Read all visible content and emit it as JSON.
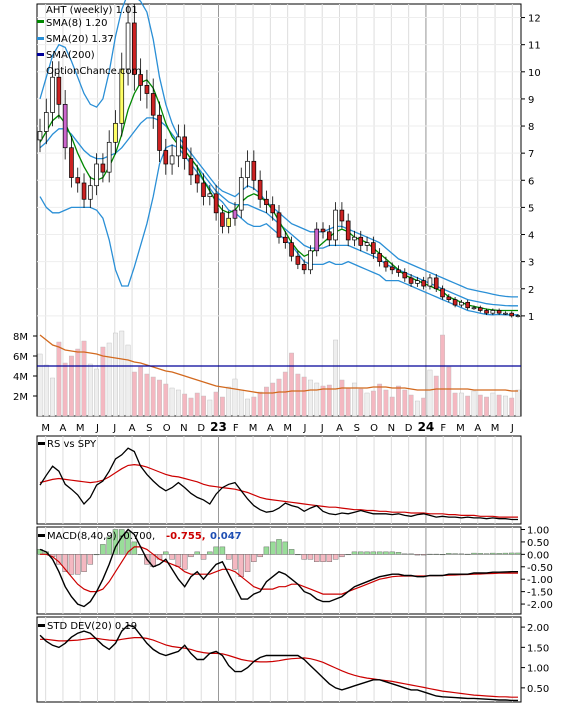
{
  "chart_data": {
    "type": "stock-chart",
    "colors": {
      "up_candle": "#ffffff",
      "down_candle": "#cc2222",
      "ribbon_yellow": "#ffff66",
      "ribbon_violet": "#cc66cc",
      "sma8": "#008800",
      "sma20": "#2a8fd6",
      "sma200": "#000099",
      "volume_up": "#eeeeee",
      "volume_down": "#f4b8c1",
      "volume_avg": "#d2691e",
      "rs_line": "#000000",
      "rs_avg": "#cc0000",
      "macd_line": "#000000",
      "signal_line": "#cc0000",
      "hist_up": "#99dd99",
      "hist_down": "#f4b8c1",
      "std_line": "#000000",
      "std_avg": "#cc0000"
    },
    "months": [
      "M",
      "A",
      "M",
      "J",
      "J",
      "A",
      "S",
      "O",
      "N",
      "D",
      "23",
      "F",
      "M",
      "A",
      "M",
      "J",
      "J",
      "A",
      "S",
      "O",
      "N",
      "D",
      "24",
      "F",
      "M",
      "A",
      "M",
      "J"
    ],
    "year_labels": [
      "23",
      "24"
    ],
    "price_panel": {
      "legend": {
        "title": "AHT (weekly) 1.01",
        "sma8": "SMA(8) 1.20",
        "sma20": "SMA(20) 1.37",
        "sma200": "SMA(200)",
        "watermark": "OptionChance.com"
      },
      "ymin": 0,
      "ymax": 12.5,
      "yticks": [
        1,
        2,
        3,
        4,
        5,
        6,
        7,
        8,
        9,
        10,
        11,
        12
      ],
      "close": [
        7.8,
        8.5,
        9.8,
        8.8,
        7.2,
        6.1,
        5.9,
        5.3,
        5.8,
        6.6,
        6.3,
        7.4,
        8.1,
        10.1,
        11.8,
        9.9,
        9.5,
        9.2,
        8.4,
        7.1,
        6.6,
        6.9,
        7.6,
        6.8,
        6.2,
        5.9,
        5.4,
        5.5,
        4.8,
        4.3,
        4.6,
        4.9,
        6.1,
        6.7,
        6.0,
        5.3,
        5.1,
        4.8,
        3.9,
        3.7,
        3.2,
        2.9,
        2.7,
        3.4,
        4.2,
        4.1,
        3.8,
        4.9,
        4.5,
        3.8,
        3.9,
        3.6,
        3.7,
        3.3,
        3.0,
        2.8,
        2.7,
        2.6,
        2.4,
        2.2,
        2.3,
        2.1,
        2.4,
        2.0,
        1.7,
        1.6,
        1.4,
        1.5,
        1.3,
        1.3,
        1.2,
        1.1,
        1.2,
        1.1,
        1.1,
        1.0,
        1.01
      ],
      "sma8": [
        7.4,
        7.8,
        8.2,
        8.4,
        8.1,
        7.6,
        7.0,
        6.5,
        6.1,
        6.0,
        6.1,
        6.5,
        7.0,
        7.7,
        8.6,
        9.2,
        9.6,
        9.7,
        9.4,
        8.8,
        8.1,
        7.6,
        7.3,
        7.1,
        6.8,
        6.5,
        6.0,
        5.6,
        5.2,
        4.9,
        4.8,
        4.9,
        5.2,
        5.4,
        5.5,
        5.4,
        5.2,
        4.9,
        4.5,
        4.1,
        3.7,
        3.4,
        3.2,
        3.3,
        3.5,
        3.7,
        3.9,
        4.1,
        4.2,
        4.1,
        3.9,
        3.8,
        3.7,
        3.5,
        3.3,
        3.1,
        2.9,
        2.7,
        2.5,
        2.4,
        2.3,
        2.2,
        2.1,
        2.0,
        1.9,
        1.7,
        1.6,
        1.5,
        1.4,
        1.35,
        1.3,
        1.25,
        1.22,
        1.2,
        1.2,
        1.2,
        1.2
      ],
      "sma20": [
        7.2,
        7.4,
        7.7,
        7.9,
        7.9,
        7.7,
        7.4,
        7.1,
        6.9,
        6.8,
        6.8,
        6.9,
        7.0,
        7.2,
        7.5,
        7.8,
        8.1,
        8.3,
        8.3,
        8.2,
        8.0,
        7.7,
        7.4,
        7.1,
        6.8,
        6.5,
        6.2,
        5.9,
        5.6,
        5.4,
        5.2,
        5.1,
        5.1,
        5.1,
        5.0,
        4.9,
        4.8,
        4.6,
        4.4,
        4.2,
        4.0,
        3.8,
        3.6,
        3.5,
        3.5,
        3.5,
        3.6,
        3.6,
        3.6,
        3.6,
        3.5,
        3.4,
        3.3,
        3.2,
        3.1,
        2.9,
        2.8,
        2.7,
        2.6,
        2.5,
        2.4,
        2.3,
        2.2,
        2.1,
        2.0,
        1.9,
        1.8,
        1.7,
        1.6,
        1.55,
        1.5,
        1.45,
        1.42,
        1.4,
        1.38,
        1.37,
        1.37
      ],
      "bb_upper": [
        9.0,
        9.8,
        10.6,
        11.0,
        10.9,
        10.4,
        9.8,
        9.2,
        8.8,
        8.7,
        9.0,
        10.0,
        11.3,
        12.3,
        12.9,
        12.8,
        12.6,
        12.2,
        11.2,
        9.8,
        8.8,
        8.1,
        7.6,
        7.3,
        7.0,
        6.7,
        6.4,
        6.1,
        5.8,
        5.6,
        5.5,
        5.4,
        5.6,
        5.8,
        5.7,
        5.5,
        5.2,
        5.0,
        4.8,
        4.6,
        4.4,
        4.3,
        4.2,
        4.1,
        4.1,
        4.1,
        4.2,
        4.3,
        4.3,
        4.2,
        4.1,
        4.0,
        3.9,
        3.8,
        3.7,
        3.5,
        3.3,
        3.1,
        3.0,
        2.9,
        2.8,
        2.7,
        2.6,
        2.5,
        2.4,
        2.3,
        2.2,
        2.1,
        2.0,
        1.95,
        1.9,
        1.85,
        1.8,
        1.75,
        1.72,
        1.7,
        1.7
      ],
      "bb_lower": [
        5.4,
        5.0,
        4.8,
        4.8,
        4.9,
        5.0,
        5.0,
        5.0,
        5.0,
        4.9,
        4.6,
        3.8,
        2.7,
        2.1,
        2.1,
        2.8,
        3.6,
        4.4,
        5.4,
        6.6,
        7.2,
        7.3,
        7.2,
        6.9,
        6.6,
        6.3,
        6.0,
        5.7,
        5.4,
        5.2,
        4.9,
        4.8,
        4.6,
        4.4,
        4.3,
        4.3,
        4.4,
        4.2,
        4.0,
        3.8,
        3.6,
        3.3,
        3.0,
        2.9,
        2.9,
        2.9,
        3.0,
        2.9,
        2.9,
        3.0,
        2.9,
        2.8,
        2.7,
        2.6,
        2.5,
        2.3,
        2.3,
        2.3,
        2.2,
        2.1,
        2.0,
        1.9,
        1.8,
        1.7,
        1.6,
        1.5,
        1.4,
        1.3,
        1.2,
        1.15,
        1.1,
        1.05,
        1.04,
        1.05,
        1.04,
        1.04,
        1.04
      ]
    },
    "volume_panel": {
      "ymin": 0,
      "ymax": 9,
      "ytick_labels": [
        "2M",
        "4M",
        "6M",
        "8M"
      ],
      "yticks": [
        2,
        4,
        6,
        8
      ],
      "values": [
        6.2,
        5.1,
        3.8,
        7.4,
        5.3,
        6.0,
        6.7,
        7.5,
        5.2,
        4.7,
        6.9,
        7.3,
        8.3,
        8.5,
        7.1,
        4.4,
        4.9,
        4.2,
        3.9,
        3.6,
        3.2,
        2.8,
        2.6,
        2.2,
        1.8,
        2.3,
        2.0,
        1.6,
        2.4,
        1.9,
        2.9,
        3.7,
        2.6,
        1.7,
        1.9,
        2.4,
        2.9,
        3.3,
        3.7,
        4.4,
        6.3,
        4.2,
        3.9,
        3.6,
        3.3,
        3.0,
        3.1,
        7.6,
        3.6,
        2.8,
        3.3,
        2.7,
        2.3,
        2.5,
        3.2,
        2.6,
        1.9,
        3.0,
        2.6,
        2.1,
        1.5,
        1.8,
        4.6,
        4.0,
        8.1,
        4.9,
        2.3,
        2.3,
        2.0,
        2.5,
        2.1,
        1.9,
        2.3,
        2.1,
        2.0,
        1.8,
        2.6
      ],
      "average": [
        8.1,
        7.6,
        7.1,
        6.9,
        6.6,
        6.5,
        6.4,
        6.4,
        6.3,
        6.2,
        6.0,
        5.9,
        5.8,
        5.7,
        5.6,
        5.4,
        5.3,
        5.1,
        4.9,
        4.7,
        4.5,
        4.4,
        4.2,
        4.0,
        3.8,
        3.6,
        3.4,
        3.2,
        3.0,
        2.9,
        2.8,
        2.7,
        2.6,
        2.5,
        2.4,
        2.3,
        2.3,
        2.3,
        2.4,
        2.4,
        2.5,
        2.5,
        2.5,
        2.6,
        2.6,
        2.7,
        2.7,
        2.7,
        2.8,
        2.8,
        2.8,
        2.8,
        2.8,
        2.9,
        2.9,
        2.9,
        2.8,
        2.8,
        2.8,
        2.7,
        2.6,
        2.6,
        2.6,
        2.7,
        2.7,
        2.7,
        2.7,
        2.7,
        2.7,
        2.6,
        2.6,
        2.6,
        2.6,
        2.6,
        2.6,
        2.5,
        2.5
      ],
      "sma200_level": 5.0
    },
    "rs_panel": {
      "legend": "RS vs SPY",
      "ymin": 0,
      "ymax": 10,
      "line": [
        4.5,
        5.7,
        6.8,
        6.2,
        4.6,
        4.0,
        3.3,
        2.2,
        3.0,
        4.5,
        5.0,
        6.2,
        7.7,
        8.2,
        9.0,
        8.6,
        6.8,
        5.8,
        5.0,
        4.3,
        3.8,
        4.2,
        4.8,
        4.2,
        3.5,
        3.0,
        2.7,
        2.2,
        3.4,
        4.2,
        4.6,
        4.8,
        3.8,
        2.8,
        2.0,
        1.5,
        1.2,
        1.3,
        1.7,
        2.3,
        2.0,
        1.8,
        1.3,
        1.7,
        2.0,
        1.3,
        1.0,
        0.9,
        1.1,
        1.0,
        1.2,
        1.4,
        1.2,
        1.0,
        1.0,
        1.0,
        0.9,
        1.0,
        0.8,
        0.7,
        0.9,
        1.0,
        0.8,
        0.6,
        0.7,
        0.6,
        0.6,
        0.5,
        0.6,
        0.5,
        0.5,
        0.4,
        0.5,
        0.4,
        0.4,
        0.3,
        0.3
      ],
      "average": [
        4.8,
        5.0,
        5.2,
        5.3,
        5.2,
        5.1,
        5.0,
        4.9,
        4.8,
        4.9,
        5.1,
        5.5,
        6.0,
        6.5,
        6.9,
        7.0,
        6.9,
        6.7,
        6.4,
        6.1,
        5.8,
        5.6,
        5.5,
        5.3,
        5.1,
        4.9,
        4.6,
        4.4,
        4.3,
        4.2,
        4.1,
        4.0,
        3.8,
        3.6,
        3.3,
        3.0,
        2.8,
        2.7,
        2.6,
        2.5,
        2.4,
        2.3,
        2.2,
        2.1,
        2.0,
        1.9,
        1.8,
        1.8,
        1.7,
        1.6,
        1.5,
        1.5,
        1.4,
        1.4,
        1.3,
        1.3,
        1.2,
        1.2,
        1.2,
        1.1,
        1.1,
        1.1,
        1.0,
        1.0,
        1.0,
        0.9,
        0.9,
        0.8,
        0.8,
        0.8,
        0.7,
        0.7,
        0.7,
        0.6,
        0.6,
        0.6,
        0.6
      ]
    },
    "macd_panel": {
      "legend": {
        "label": "MACD(8,40,9) -0.700,",
        "signal": "-0.755,",
        "hist": "0.047"
      },
      "ymin": -2.4,
      "ymax": 1.1,
      "ytick_labels": [
        "1.00",
        "0.50",
        "0.00",
        "-0.50",
        "-1.00",
        "-1.50",
        "-2.00"
      ],
      "yticks": [
        1.0,
        0.5,
        0.0,
        -0.5,
        -1.0,
        -1.5,
        -2.0
      ],
      "macd": [
        0.2,
        0.1,
        -0.2,
        -0.7,
        -1.3,
        -1.7,
        -2.0,
        -2.1,
        -1.9,
        -1.5,
        -1.0,
        -0.4,
        0.3,
        0.7,
        1.0,
        0.8,
        0.3,
        -0.2,
        -0.5,
        -0.4,
        -0.2,
        -0.6,
        -1.0,
        -1.3,
        -0.9,
        -0.7,
        -1.0,
        -0.7,
        -0.4,
        -0.3,
        -0.8,
        -1.3,
        -1.8,
        -1.8,
        -1.6,
        -1.5,
        -1.1,
        -0.9,
        -0.7,
        -0.8,
        -1.0,
        -1.2,
        -1.5,
        -1.6,
        -1.8,
        -1.9,
        -1.9,
        -1.8,
        -1.7,
        -1.5,
        -1.3,
        -1.2,
        -1.1,
        -1.0,
        -0.9,
        -0.85,
        -0.8,
        -0.8,
        -0.85,
        -0.85,
        -0.9,
        -0.9,
        -0.85,
        -0.85,
        -0.85,
        -0.8,
        -0.8,
        -0.8,
        -0.8,
        -0.75,
        -0.75,
        -0.75,
        -0.72,
        -0.72,
        -0.71,
        -0.7,
        -0.7
      ],
      "signal": [
        0.0,
        0.0,
        -0.1,
        -0.3,
        -0.6,
        -0.9,
        -1.2,
        -1.4,
        -1.5,
        -1.5,
        -1.4,
        -1.1,
        -0.7,
        -0.3,
        0.1,
        0.3,
        0.3,
        0.2,
        0.0,
        -0.2,
        -0.3,
        -0.4,
        -0.5,
        -0.7,
        -0.8,
        -0.8,
        -0.8,
        -0.8,
        -0.7,
        -0.6,
        -0.6,
        -0.7,
        -0.9,
        -1.1,
        -1.3,
        -1.4,
        -1.4,
        -1.4,
        -1.3,
        -1.3,
        -1.2,
        -1.2,
        -1.3,
        -1.4,
        -1.5,
        -1.6,
        -1.6,
        -1.6,
        -1.6,
        -1.5,
        -1.4,
        -1.3,
        -1.2,
        -1.1,
        -1.0,
        -0.95,
        -0.9,
        -0.88,
        -0.87,
        -0.87,
        -0.87,
        -0.87,
        -0.86,
        -0.86,
        -0.85,
        -0.84,
        -0.83,
        -0.82,
        -0.81,
        -0.8,
        -0.79,
        -0.78,
        -0.77,
        -0.76,
        -0.76,
        -0.755,
        -0.755
      ]
    },
    "std_panel": {
      "legend": "STD DEV(20) 0.19",
      "ymin": 0.2,
      "ymax": 2.2,
      "ytick_labels": [
        "2.00",
        "1.50",
        "1.00",
        "0.50"
      ],
      "yticks": [
        2.0,
        1.5,
        1.0,
        0.5
      ],
      "line": [
        1.8,
        1.65,
        1.55,
        1.5,
        1.6,
        1.75,
        1.85,
        1.9,
        1.85,
        1.7,
        1.55,
        1.45,
        1.6,
        1.9,
        2.05,
        2.0,
        1.8,
        1.6,
        1.45,
        1.35,
        1.3,
        1.35,
        1.4,
        1.55,
        1.35,
        1.2,
        1.2,
        1.35,
        1.4,
        1.3,
        1.05,
        0.9,
        0.9,
        1.0,
        1.15,
        1.25,
        1.3,
        1.3,
        1.3,
        1.3,
        1.3,
        1.3,
        1.2,
        1.05,
        0.9,
        0.75,
        0.6,
        0.5,
        0.45,
        0.5,
        0.55,
        0.6,
        0.65,
        0.7,
        0.7,
        0.65,
        0.6,
        0.55,
        0.5,
        0.45,
        0.45,
        0.4,
        0.35,
        0.3,
        0.28,
        0.27,
        0.26,
        0.25,
        0.24,
        0.24,
        0.23,
        0.22,
        0.21,
        0.2,
        0.2,
        0.19,
        0.19
      ],
      "average": [
        1.7,
        1.7,
        1.68,
        1.66,
        1.66,
        1.67,
        1.68,
        1.7,
        1.72,
        1.72,
        1.7,
        1.68,
        1.67,
        1.7,
        1.72,
        1.74,
        1.74,
        1.72,
        1.68,
        1.62,
        1.56,
        1.52,
        1.5,
        1.48,
        1.45,
        1.4,
        1.37,
        1.35,
        1.35,
        1.34,
        1.3,
        1.25,
        1.2,
        1.17,
        1.15,
        1.14,
        1.14,
        1.15,
        1.17,
        1.2,
        1.22,
        1.23,
        1.24,
        1.22,
        1.18,
        1.13,
        1.06,
        0.99,
        0.92,
        0.86,
        0.81,
        0.77,
        0.74,
        0.72,
        0.7,
        0.68,
        0.66,
        0.63,
        0.6,
        0.57,
        0.54,
        0.51,
        0.48,
        0.45,
        0.42,
        0.4,
        0.38,
        0.36,
        0.34,
        0.32,
        0.31,
        0.3,
        0.29,
        0.28,
        0.28,
        0.27,
        0.27
      ]
    }
  }
}
